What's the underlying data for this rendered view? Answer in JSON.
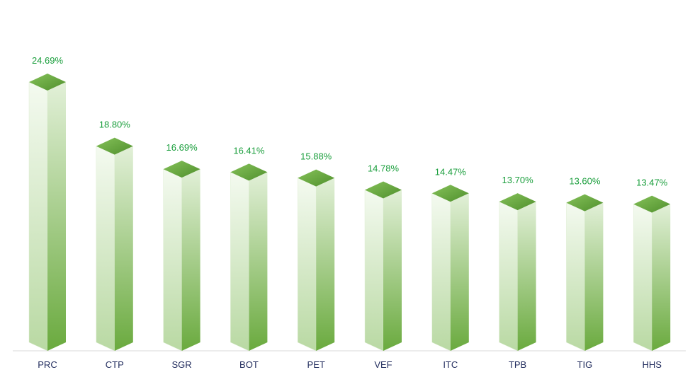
{
  "chart_data": {
    "type": "bar",
    "title": "",
    "xlabel": "",
    "ylabel": "",
    "categories": [
      "PRC",
      "CTP",
      "SGR",
      "BOT",
      "PET",
      "VEF",
      "ITC",
      "TPB",
      "TIG",
      "HHS"
    ],
    "values": [
      24.69,
      18.8,
      16.69,
      16.41,
      15.88,
      14.78,
      14.47,
      13.7,
      13.6,
      13.47
    ],
    "value_labels": [
      "24.69%",
      "18.80%",
      "16.69%",
      "16.41%",
      "15.88%",
      "14.78%",
      "14.47%",
      "13.70%",
      "13.60%",
      "13.47%"
    ],
    "ylim": [
      0,
      25
    ],
    "grid": false,
    "legend": "none",
    "colors": {
      "bar_dark": "#6aaa3e",
      "bar_light": "#f2f8ee",
      "top": "#5e9e36",
      "label": "#1a9e3c",
      "category": "#1f2a5c",
      "axis": "#d9d9d9"
    }
  }
}
